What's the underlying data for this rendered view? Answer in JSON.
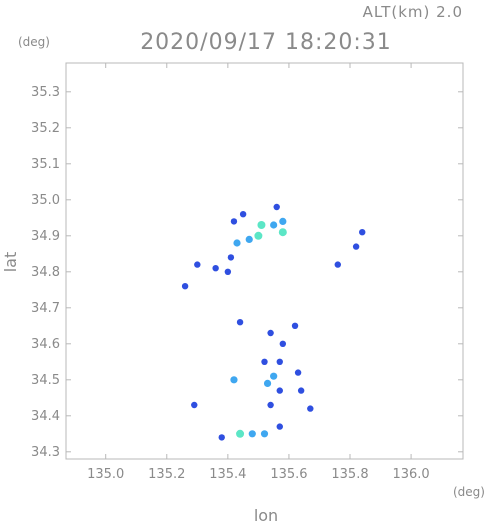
{
  "chart_data": {
    "type": "scatter",
    "title": "2020/09/17 18:20:31",
    "altitude_label": "ALT(km) 2.0",
    "xlabel": "lon",
    "ylabel": "lat",
    "xunit": "(deg)",
    "yunit": "(deg)",
    "xlim": [
      134.87,
      136.17
    ],
    "ylim": [
      34.28,
      35.38
    ],
    "xticks": [
      "135.0",
      "135.2",
      "135.4",
      "135.6",
      "135.8",
      "136.0"
    ],
    "yticks": [
      "34.3",
      "34.4",
      "34.5",
      "34.6",
      "34.7",
      "34.8",
      "34.9",
      "35.0",
      "35.1",
      "35.2",
      "35.3"
    ],
    "grid": false,
    "colors": {
      "weak": "#2f4fe0",
      "moderate": "#3fa7f0",
      "strong": "#5ce6c6",
      "axis": "#b8b8b8",
      "text": "#8a8a8a"
    },
    "echoes": [
      {
        "lon": 135.51,
        "lat": 34.93,
        "level": "strong"
      },
      {
        "lon": 135.5,
        "lat": 34.9,
        "level": "strong"
      },
      {
        "lon": 135.47,
        "lat": 34.89,
        "level": "moderate"
      },
      {
        "lon": 135.55,
        "lat": 34.93,
        "level": "moderate"
      },
      {
        "lon": 135.58,
        "lat": 34.94,
        "level": "moderate"
      },
      {
        "lon": 135.58,
        "lat": 34.91,
        "level": "strong"
      },
      {
        "lon": 135.43,
        "lat": 34.88,
        "level": "moderate"
      },
      {
        "lon": 135.56,
        "lat": 34.98,
        "level": "weak"
      },
      {
        "lon": 135.42,
        "lat": 34.94,
        "level": "weak"
      },
      {
        "lon": 135.45,
        "lat": 34.96,
        "level": "weak"
      },
      {
        "lon": 135.41,
        "lat": 34.84,
        "level": "weak"
      },
      {
        "lon": 135.36,
        "lat": 34.81,
        "level": "weak"
      },
      {
        "lon": 135.4,
        "lat": 34.8,
        "level": "weak"
      },
      {
        "lon": 135.3,
        "lat": 34.82,
        "level": "weak"
      },
      {
        "lon": 135.26,
        "lat": 34.76,
        "level": "weak"
      },
      {
        "lon": 135.82,
        "lat": 34.87,
        "level": "weak"
      },
      {
        "lon": 135.84,
        "lat": 34.91,
        "level": "weak"
      },
      {
        "lon": 135.76,
        "lat": 34.82,
        "level": "weak"
      },
      {
        "lon": 135.54,
        "lat": 34.63,
        "level": "weak"
      },
      {
        "lon": 135.58,
        "lat": 34.6,
        "level": "weak"
      },
      {
        "lon": 135.62,
        "lat": 34.65,
        "level": "weak"
      },
      {
        "lon": 135.44,
        "lat": 34.66,
        "level": "weak"
      },
      {
        "lon": 135.52,
        "lat": 34.55,
        "level": "weak"
      },
      {
        "lon": 135.57,
        "lat": 34.55,
        "level": "weak"
      },
      {
        "lon": 135.55,
        "lat": 34.51,
        "level": "moderate"
      },
      {
        "lon": 135.53,
        "lat": 34.49,
        "level": "moderate"
      },
      {
        "lon": 135.57,
        "lat": 34.47,
        "level": "weak"
      },
      {
        "lon": 135.63,
        "lat": 34.52,
        "level": "weak"
      },
      {
        "lon": 135.64,
        "lat": 34.47,
        "level": "weak"
      },
      {
        "lon": 135.54,
        "lat": 34.43,
        "level": "weak"
      },
      {
        "lon": 135.67,
        "lat": 34.42,
        "level": "weak"
      },
      {
        "lon": 135.42,
        "lat": 34.5,
        "level": "moderate"
      },
      {
        "lon": 135.29,
        "lat": 34.43,
        "level": "weak"
      },
      {
        "lon": 135.44,
        "lat": 34.35,
        "level": "strong"
      },
      {
        "lon": 135.48,
        "lat": 34.35,
        "level": "moderate"
      },
      {
        "lon": 135.52,
        "lat": 34.35,
        "level": "moderate"
      },
      {
        "lon": 135.38,
        "lat": 34.34,
        "level": "weak"
      },
      {
        "lon": 135.57,
        "lat": 34.37,
        "level": "weak"
      }
    ]
  }
}
